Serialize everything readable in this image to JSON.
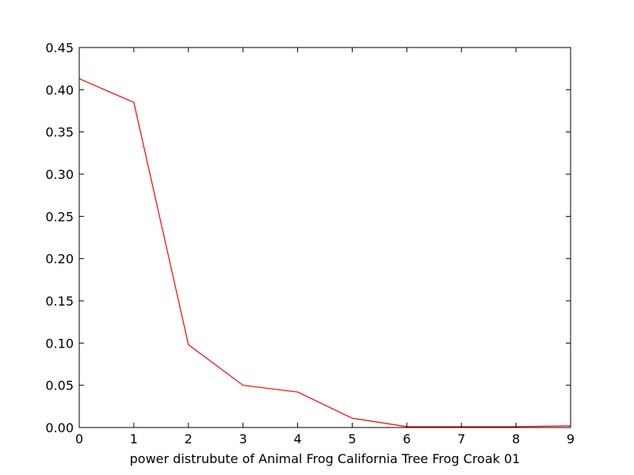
{
  "chart_data": {
    "type": "line",
    "title": "",
    "xlabel": "power distrubute of Animal Frog California Tree Frog Croak 01",
    "ylabel": "",
    "xlim": [
      0,
      9
    ],
    "ylim": [
      0,
      0.45
    ],
    "x_ticks": [
      "0",
      "1",
      "2",
      "3",
      "4",
      "5",
      "6",
      "7",
      "8",
      "9"
    ],
    "y_ticks": [
      "0.00",
      "0.05",
      "0.10",
      "0.15",
      "0.20",
      "0.25",
      "0.30",
      "0.35",
      "0.40",
      "0.45"
    ],
    "grid": false,
    "legend": "none",
    "series": [
      {
        "color": "#ff0000",
        "x": [
          0,
          1,
          2,
          3,
          4,
          5,
          6,
          7,
          8,
          9
        ],
        "values": [
          0.413,
          0.385,
          0.098,
          0.05,
          0.042,
          0.011,
          0.001,
          0.001,
          0.001,
          0.002
        ]
      }
    ]
  }
}
